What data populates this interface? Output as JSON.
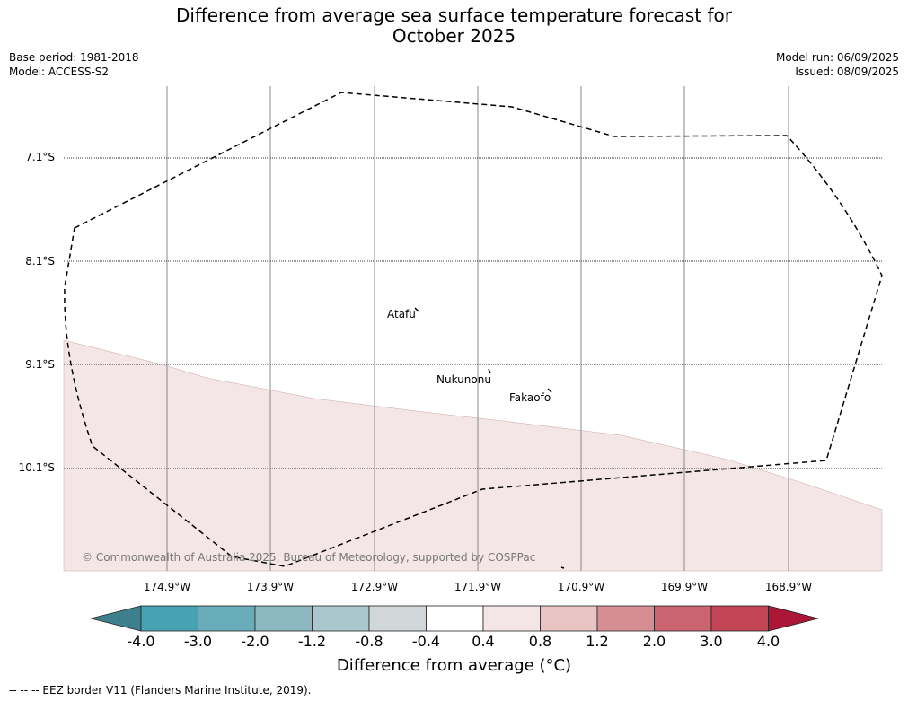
{
  "title_line1": "Difference from average sea surface temperature forecast for",
  "title_line2": "October 2025",
  "base_period": "Base period: 1981-2018",
  "model": "Model: ACCESS-S2",
  "model_run": "Model run: 06/09/2025",
  "issued": "Issued: 08/09/2025",
  "lat_labels": [
    "7.1°S",
    "8.1°S",
    "9.1°S",
    "10.1°S"
  ],
  "lon_labels": [
    "174.9°W",
    "173.9°W",
    "172.9°W",
    "171.9°W",
    "170.9°W",
    "169.9°W",
    "168.9°W"
  ],
  "islands": {
    "atafu": "Atafu",
    "nukunonu": "Nukunonu",
    "fakaofo": "Fakaofo"
  },
  "copyright": "© Commonwealth of Australia 2025, Bureau of Meteorology, supported by COSPPac",
  "colorbar": {
    "tick_labels": [
      "-4.0",
      "-3.0",
      "-2.0",
      "-1.2",
      "-0.8",
      "-0.4",
      "0.4",
      "0.8",
      "1.2",
      "2.0",
      "3.0",
      "4.0"
    ],
    "colors": [
      "#3d7f8c",
      "#47a3b4",
      "#69adbb",
      "#8db8c1",
      "#a9c7cc",
      "#d1d7d9",
      "#ffffff",
      "#f4e6e6",
      "#e8c5c2",
      "#d68d94",
      "#cc6470",
      "#c24555",
      "#ad1737"
    ],
    "title": "Difference from average (°C)"
  },
  "shaded_region_color": "#f4e6e6",
  "legend": "--  --  -- EEZ border V11 (Flanders Marine Institute, 2019)."
}
